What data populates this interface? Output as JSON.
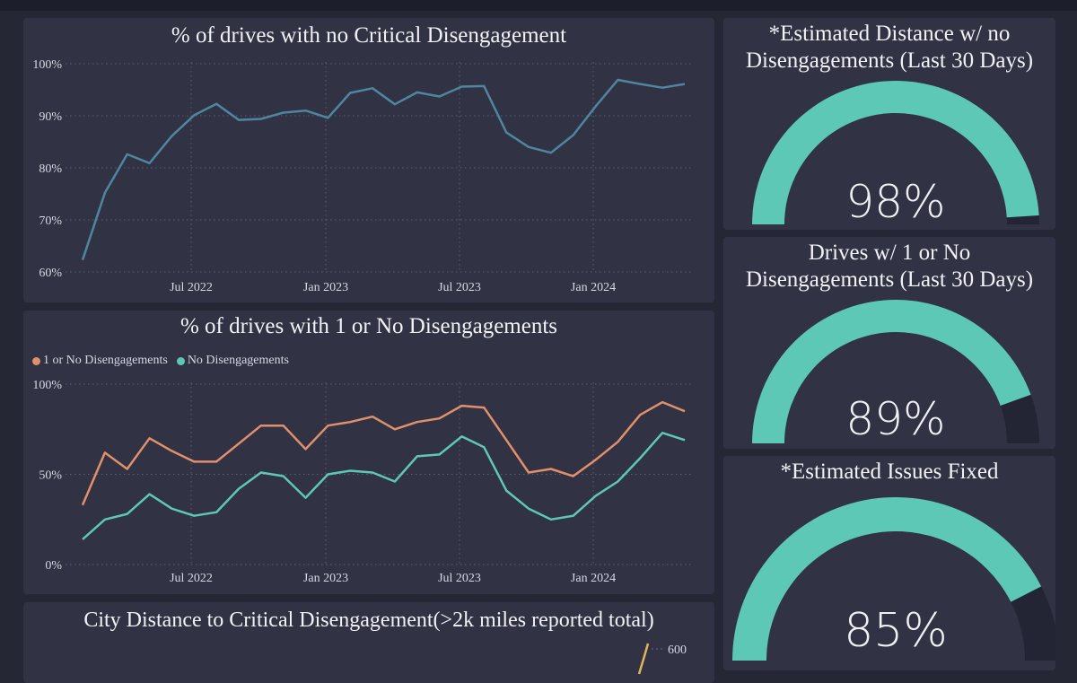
{
  "colors": {
    "background": "#262735",
    "panel": "#313244",
    "line_primary": "#4e86a0",
    "line_orange": "#e0906a",
    "line_teal": "#5ec8b6",
    "gauge_fill": "#5ec8b6",
    "gauge_track": "#232434"
  },
  "chart1": {
    "title": "% of drives with no Critical Disengagement"
  },
  "chart2": {
    "title": "% of drives with 1 or No Disengagements",
    "legend": [
      "1 or No Disengagements",
      "No Disengagements"
    ]
  },
  "chart3": {
    "title": "City Distance to Critical Disengagement(>2k miles reported total)",
    "tick_label": "600"
  },
  "gauges": [
    {
      "title_line1": "*Estimated Distance w/ no",
      "title_line2": "Disengagements (Last 30 Days)",
      "value_label": "98%",
      "fraction": 0.98
    },
    {
      "title_line1": "Drives w/ 1 or No",
      "title_line2": "Disengagements (Last 30 Days)",
      "value_label": "89%",
      "fraction": 0.89
    },
    {
      "title_line1": "*Estimated Issues Fixed",
      "title_line2": "",
      "value_label": "85%",
      "fraction": 0.85
    }
  ],
  "chart_data": [
    {
      "type": "line",
      "title": "% of drives with no Critical Disengagement",
      "x_ticks": [
        "Jul 2022",
        "Jan 2023",
        "Jul 2023",
        "Jan 2024"
      ],
      "y_ticks": [
        "60%",
        "70%",
        "80%",
        "90%",
        "100%"
      ],
      "ylim": [
        60,
        100
      ],
      "grid": true,
      "series": [
        {
          "values": [
            62.3,
            75.2,
            82.6,
            80.9,
            86.1,
            90.1,
            92.3,
            89.2,
            89.4,
            90.6,
            91.0,
            89.6,
            94.4,
            95.3,
            92.2,
            94.5,
            93.7,
            95.6,
            95.7,
            86.8,
            84.0,
            82.9,
            86.3,
            91.8,
            96.9,
            96.1,
            95.4,
            96.1
          ]
        }
      ]
    },
    {
      "type": "line",
      "title": "% of drives with 1 or No Disengagements",
      "x_ticks": [
        "Jul 2022",
        "Jan 2023",
        "Jul 2023",
        "Jan 2024"
      ],
      "y_ticks": [
        "0%",
        "50%",
        "100%"
      ],
      "ylim": [
        0,
        100
      ],
      "grid": true,
      "legend_position": "top-left",
      "series": [
        {
          "name": "1 or No Disengagements",
          "values": [
            33,
            62,
            53,
            70,
            63,
            57,
            57,
            67,
            77,
            77,
            64,
            77,
            79,
            82,
            75,
            79,
            81,
            88,
            87,
            69,
            51,
            53,
            49,
            58,
            68,
            83,
            90,
            85
          ]
        },
        {
          "name": "No Disengagements",
          "values": [
            14,
            25,
            28,
            39,
            31,
            27,
            29,
            42,
            51,
            49,
            37,
            50,
            52,
            51,
            46,
            60,
            61,
            71,
            65,
            41,
            31,
            25,
            27,
            38,
            46,
            59,
            73,
            69
          ]
        }
      ]
    }
  ]
}
